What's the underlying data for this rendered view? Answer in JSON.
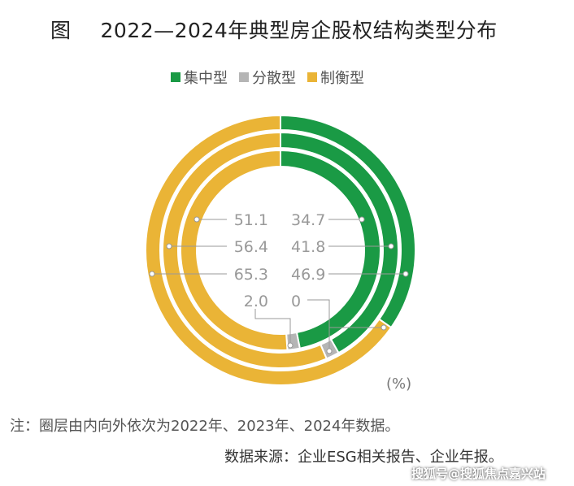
{
  "title": {
    "fig": "图",
    "text": "2022—2024年典型房企股权结构类型分布"
  },
  "chart_data": {
    "type": "pie",
    "subtype": "nested-donut",
    "unit": "(%)",
    "legend": [
      {
        "name": "集中型",
        "color": "#1a9a45"
      },
      {
        "name": "分散型",
        "color": "#b5b5b5"
      },
      {
        "name": "制衡型",
        "color": "#eab436"
      }
    ],
    "legend_position": "top",
    "rings": [
      {
        "year": "2022",
        "position": "inner",
        "values": {
          "集中型": 46.9,
          "分散型": 2.0,
          "制衡型": 51.1
        }
      },
      {
        "year": "2023",
        "position": "middle",
        "values": {
          "集中型": 41.8,
          "分散型": 1.8,
          "制衡型": 56.4
        }
      },
      {
        "year": "2024",
        "position": "outer",
        "values": {
          "集中型": 34.7,
          "分散型": 0,
          "制衡型": 65.3
        }
      }
    ],
    "labels": {
      "left": [
        "51.1",
        "56.4",
        "65.3",
        "2.0"
      ],
      "right": [
        "34.7",
        "41.8",
        "46.9",
        "0"
      ]
    }
  },
  "note": "注：圈层由内向外依次为2022年、2023年、2024年数据。",
  "source": "数据来源：企业ESG相关报告、企业年报。",
  "watermark": "搜狐号@搜狐焦点嘉兴站"
}
